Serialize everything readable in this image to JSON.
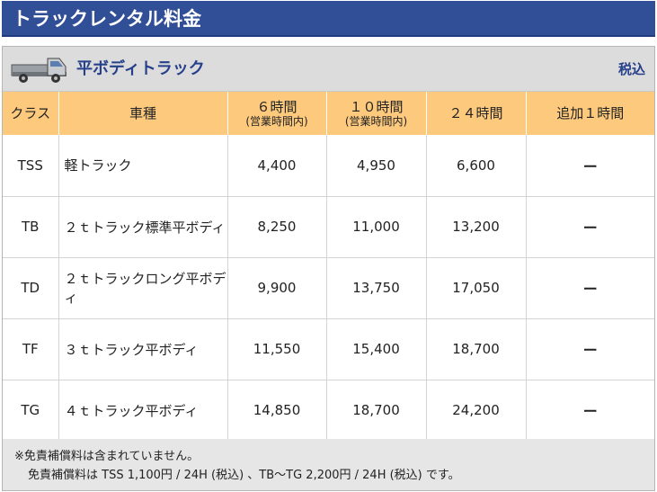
{
  "page": {
    "title": "トラックレンタル料金"
  },
  "section": {
    "title": "平ボディトラック",
    "tax_label": "税込",
    "icon": "truck-icon"
  },
  "table": {
    "headers": [
      {
        "label": "クラス",
        "sub": ""
      },
      {
        "label": "車種",
        "sub": ""
      },
      {
        "label": "６時間",
        "sub": "(営業時間内)"
      },
      {
        "label": "１０時間",
        "sub": "(営業時間内)"
      },
      {
        "label": "２４時間",
        "sub": ""
      },
      {
        "label": "追加１時間",
        "sub": ""
      }
    ],
    "rows": [
      {
        "class": "TSS",
        "type": "軽トラック",
        "h6": "4,400",
        "h10": "4,950",
        "h24": "6,600",
        "extra": "ー"
      },
      {
        "class": "TB",
        "type": "２ｔトラック標準平ボディ",
        "h6": "8,250",
        "h10": "11,000",
        "h24": "13,200",
        "extra": "ー"
      },
      {
        "class": "TD",
        "type": "２ｔトラックロング平ボディ",
        "h6": "9,900",
        "h10": "13,750",
        "h24": "17,050",
        "extra": "ー"
      },
      {
        "class": "TF",
        "type": "３ｔトラック平ボディ",
        "h6": "11,550",
        "h10": "15,400",
        "h24": "18,700",
        "extra": "ー"
      },
      {
        "class": "TG",
        "type": "４ｔトラック平ボディ",
        "h6": "14,850",
        "h10": "18,700",
        "h24": "24,200",
        "extra": "ー"
      }
    ]
  },
  "notes": {
    "line1": "※免責補償料は含まれていません。",
    "line2": "免責補償料は TSS 1,100円 / 24H (税込) 、TB～TG 2,200円 / 24H (税込) です。"
  },
  "colors": {
    "title_bar": "#314f96",
    "header_row": "#fdc97d",
    "section_text": "#27408b"
  }
}
